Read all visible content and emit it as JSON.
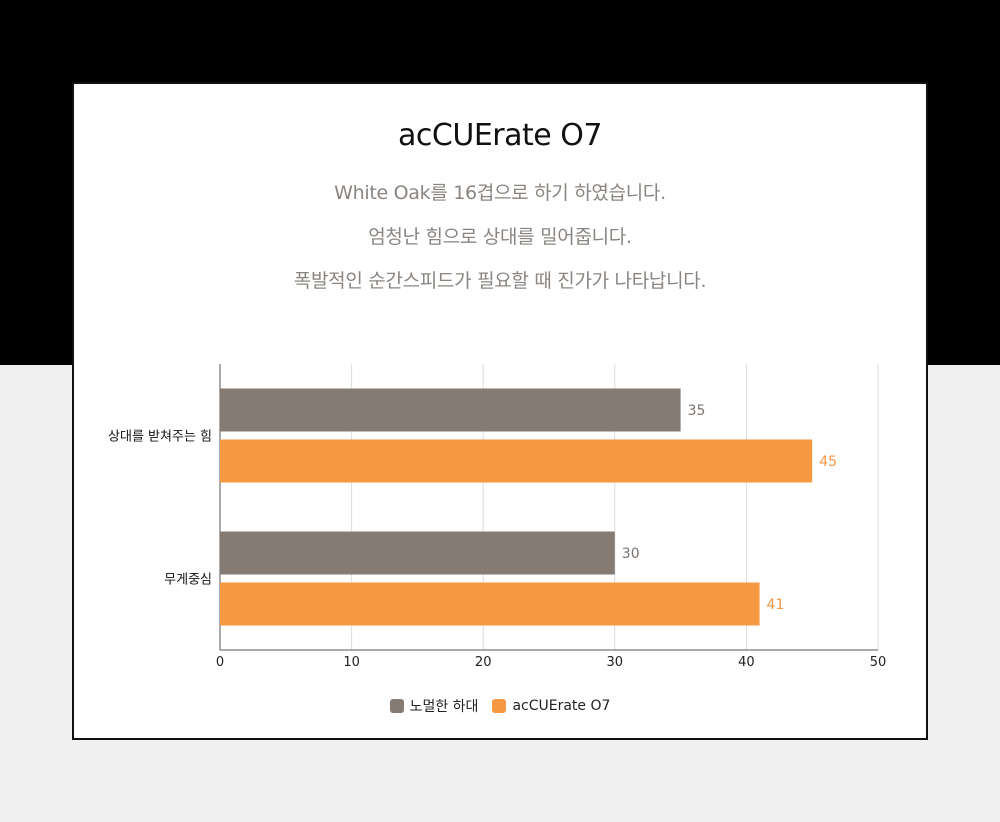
{
  "header": {
    "title": "acCUErate O7",
    "lines": [
      "White Oak를 16겹으로 하기 하였습니다.",
      "엄청난 힘으로 상대를 밀어줍니다.",
      "폭발적인 순간스피드가 필요할 때 진가가 나타납니다."
    ]
  },
  "colors": {
    "top_background": "#000000",
    "bottom_background": "#f0f0f0",
    "series_gray": "#857b73",
    "series_orange": "#f79843"
  },
  "chart_data": {
    "type": "bar",
    "orientation": "horizontal",
    "categories": [
      "상대를 받쳐주는 힘",
      "무게중심"
    ],
    "series": [
      {
        "name": "노멀한 하대",
        "values": [
          35,
          30
        ],
        "color": "#857b73"
      },
      {
        "name": "acCUErate O7",
        "values": [
          45,
          41
        ],
        "color": "#f79843"
      }
    ],
    "xlim": [
      0,
      50
    ],
    "xticks": [
      0,
      10,
      20,
      30,
      40,
      50
    ],
    "grid": true,
    "legend": "bottom",
    "data_labels": true
  }
}
